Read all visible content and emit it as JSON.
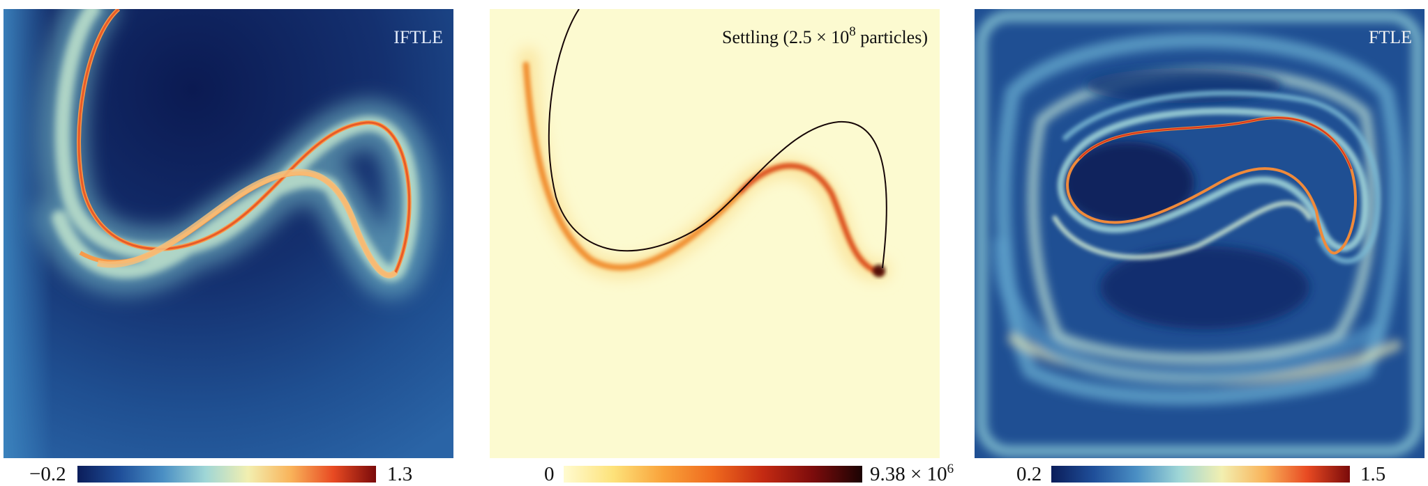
{
  "panels": [
    {
      "title": "IFTLE",
      "colorbar": {
        "min": "−0.2",
        "max": "1.3",
        "colors": [
          "#0b1d5a",
          "#1f4f9a",
          "#4a8fc4",
          "#9fd6d6",
          "#f2efb0",
          "#f9b35a",
          "#e84a22",
          "#7a0a0a"
        ]
      }
    },
    {
      "title": "Settling (2.5 × 10",
      "title_exp": "8",
      "title_tail": " particles)",
      "colorbar": {
        "min": "0",
        "max": "9.38 × 10",
        "max_exp": "6",
        "colors": [
          "#fffbd0",
          "#fde27a",
          "#f9a23a",
          "#ef6a1e",
          "#c42a12",
          "#7d0c0c",
          "#1b0303"
        ]
      }
    },
    {
      "title": "FTLE",
      "colorbar": {
        "min": "0.2",
        "max": "1.5",
        "colors": [
          "#0b1d5a",
          "#1f4f9a",
          "#4a8fc4",
          "#9fd6d6",
          "#f2efb0",
          "#f9b35a",
          "#e84a22",
          "#7a0a0a"
        ]
      }
    }
  ]
}
